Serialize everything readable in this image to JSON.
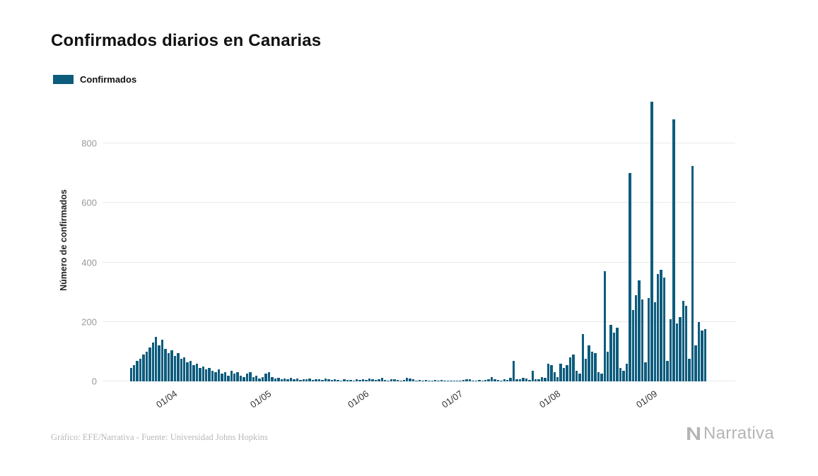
{
  "header": {
    "title": "Confirmados diarios en Canarias"
  },
  "legend": {
    "label": "Confirmados"
  },
  "footer": {
    "source": "Gráfico: EFE/Narrativa - Fuente: Universidad Johns Hopkins",
    "brand": "Narrativa"
  },
  "chart_data": {
    "type": "bar",
    "title": "Confirmados diarios en Canarias",
    "ylabel": "Número de confirmados",
    "xlabel": "",
    "legend": [
      "Confirmados"
    ],
    "legend_position": "top-left",
    "grid": true,
    "bar_color": "#0d5c7d",
    "yticks": [
      0,
      200,
      400,
      600,
      800
    ],
    "ylim": [
      0,
      950
    ],
    "x_ticks": [
      "01/04",
      "01/05",
      "01/06",
      "01/07",
      "01/08",
      "01/09"
    ],
    "x_unit": "day (dd/mm), year 2020",
    "months": [
      {
        "month": "03",
        "start_day": 19,
        "values": [
          45,
          55,
          70,
          75,
          90,
          100,
          115,
          130,
          150,
          120,
          140,
          110,
          95
        ]
      },
      {
        "month": "04",
        "start_day": 1,
        "values": [
          105,
          85,
          95,
          75,
          80,
          65,
          70,
          55,
          60,
          45,
          50,
          40,
          45,
          35,
          30,
          40,
          25,
          30,
          20,
          35,
          25,
          30,
          20,
          15,
          25,
          30,
          15,
          20,
          10,
          15
        ]
      },
      {
        "month": "05",
        "start_day": 1,
        "values": [
          25,
          30,
          15,
          10,
          12,
          8,
          10,
          6,
          12,
          8,
          10,
          5,
          8,
          6,
          10,
          4,
          6,
          8,
          5,
          10,
          6,
          4,
          8,
          5,
          3,
          6,
          4,
          5,
          3,
          6,
          4
        ]
      },
      {
        "month": "06",
        "start_day": 1,
        "values": [
          8,
          5,
          10,
          6,
          4,
          8,
          12,
          5,
          3,
          6,
          8,
          4,
          2,
          5,
          12,
          10,
          6,
          3,
          5,
          2,
          4,
          3,
          2,
          4,
          3,
          5,
          2,
          3,
          2,
          3
        ]
      },
      {
        "month": "07",
        "start_day": 1,
        "values": [
          3,
          2,
          4,
          6,
          8,
          3,
          2,
          4,
          3,
          5,
          8,
          15,
          6,
          4,
          3,
          8,
          5,
          12,
          70,
          8,
          6,
          12,
          10,
          5,
          35,
          8,
          6,
          15,
          12,
          60,
          55
        ]
      },
      {
        "month": "08",
        "start_day": 1,
        "values": [
          30,
          15,
          60,
          45,
          55,
          80,
          90,
          35,
          25,
          160,
          75,
          120,
          100,
          95,
          30,
          25,
          370,
          100,
          190,
          165,
          180,
          45,
          35,
          60,
          700,
          240,
          290,
          340,
          275,
          65,
          280
        ]
      },
      {
        "month": "09",
        "start_day": 1,
        "values": [
          940,
          265,
          360,
          375,
          350,
          70,
          210,
          880,
          195,
          215,
          270,
          255,
          75,
          725,
          120,
          200,
          170,
          175
        ]
      }
    ]
  }
}
